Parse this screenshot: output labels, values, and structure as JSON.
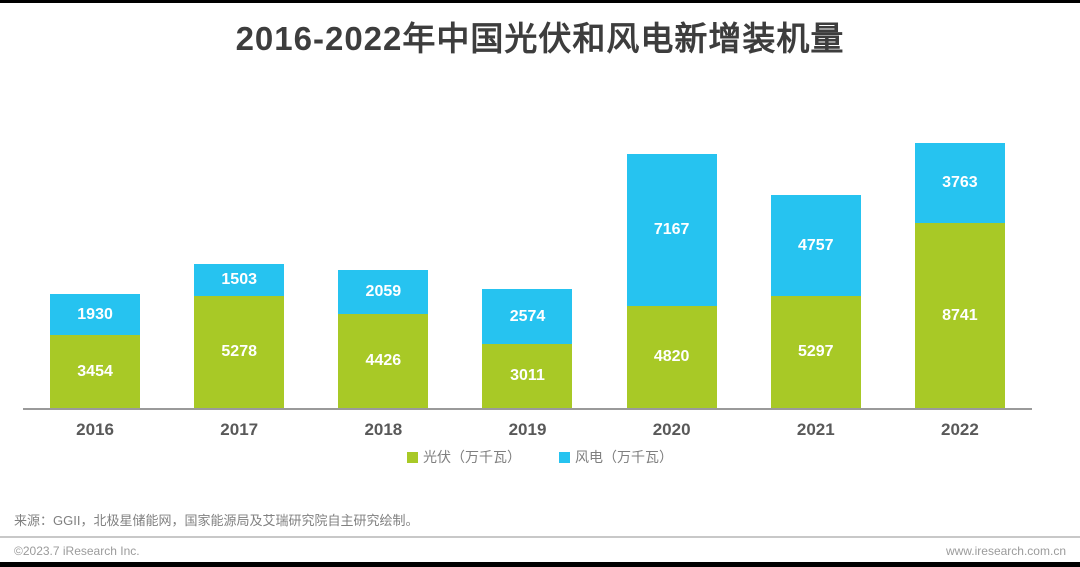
{
  "chart_data": {
    "type": "bar",
    "stacked": true,
    "title": "2016-2022年中国光伏和风电新增装机量",
    "unit": "万千瓦",
    "categories": [
      "2016",
      "2017",
      "2018",
      "2019",
      "2020",
      "2021",
      "2022"
    ],
    "series": [
      {
        "id": "solar-pv",
        "name": "光伏（万千瓦）",
        "color": "#a8c926",
        "values": [
          3454,
          5278,
          4426,
          3011,
          4820,
          5297,
          8741
        ]
      },
      {
        "id": "wind",
        "name": "风电（万千瓦）",
        "color": "#26c3f0",
        "values": [
          1930,
          1503,
          2059,
          2574,
          7167,
          4757,
          3763
        ]
      }
    ],
    "legend_position": "bottom",
    "value_labels": true,
    "y_axis_visible": false,
    "grid": false
  },
  "footer": {
    "source": "来源：GGII，北极星储能网，国家能源局及艾瑞研究院自主研究绘制。",
    "copyright": "©2023.7 iResearch Inc.",
    "website": "www.iresearch.com.cn"
  }
}
